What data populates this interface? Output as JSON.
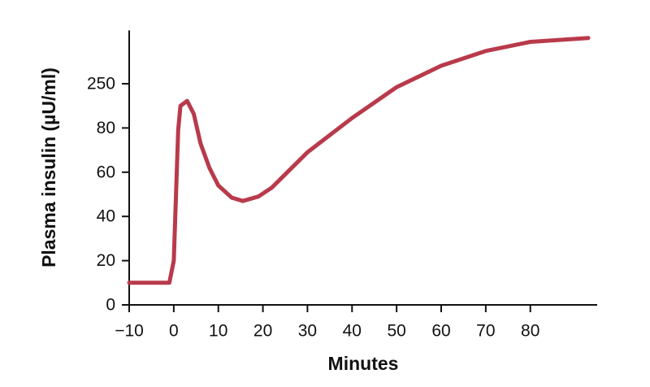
{
  "chart_data": {
    "type": "line",
    "xlabel": "Minutes",
    "ylabel": "Plasma insulin (µU/ml)",
    "xlim": [
      -10,
      95
    ],
    "xticks": [
      -10,
      0,
      10,
      20,
      30,
      40,
      50,
      60,
      70,
      80
    ],
    "ylim": [
      0,
      455
    ],
    "yticks": [
      0,
      20,
      40,
      60,
      80,
      250
    ],
    "series": [
      {
        "color": "#b83a4b",
        "x": [
          -10,
          -1,
          0,
          1,
          1.5,
          3,
          4.5,
          6,
          8,
          10,
          13,
          15.5,
          19,
          22,
          30,
          40,
          50,
          60,
          70,
          80,
          93
        ],
        "values": [
          10,
          10,
          20,
          79,
          165,
          184,
          134,
          73,
          62,
          54,
          48.5,
          47,
          49,
          53,
          69,
          118,
          237,
          319,
          376,
          411,
          426
        ]
      }
    ]
  }
}
